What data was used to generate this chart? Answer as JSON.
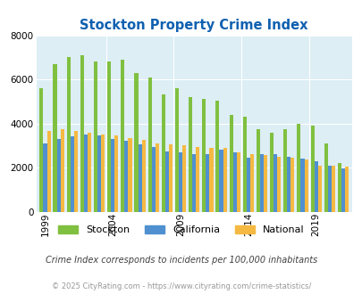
{
  "title": "Stockton Property Crime Index",
  "years": [
    1999,
    2000,
    2001,
    2002,
    2003,
    2004,
    2005,
    2006,
    2007,
    2008,
    2009,
    2010,
    2011,
    2012,
    2013,
    2014,
    2015,
    2016,
    2017,
    2018,
    2019,
    2020,
    2021
  ],
  "stockton": [
    5600,
    6700,
    7000,
    7100,
    6800,
    6800,
    6900,
    6300,
    6100,
    5300,
    5600,
    5200,
    5100,
    5050,
    4400,
    4300,
    3750,
    3600,
    3750,
    4000,
    3900,
    3100,
    2200
  ],
  "california": [
    3100,
    3300,
    3400,
    3500,
    3450,
    3300,
    3200,
    3050,
    2950,
    2750,
    2700,
    2600,
    2600,
    2800,
    2700,
    2450,
    2600,
    2600,
    2500,
    2400,
    2300,
    2100,
    1950
  ],
  "national": [
    3650,
    3750,
    3650,
    3600,
    3500,
    3450,
    3350,
    3250,
    3100,
    3050,
    3000,
    2950,
    2900,
    2900,
    2700,
    2600,
    2550,
    2500,
    2450,
    2350,
    2100,
    2100,
    2050
  ],
  "stockton_color": "#80c040",
  "california_color": "#5090d0",
  "national_color": "#f5b942",
  "bg_color": "#ddeef5",
  "ylim": [
    0,
    8000
  ],
  "yticks": [
    0,
    2000,
    4000,
    6000,
    8000
  ],
  "xtick_years": [
    1999,
    2004,
    2009,
    2014,
    2019
  ],
  "subtitle": "Crime Index corresponds to incidents per 100,000 inhabitants",
  "footer": "© 2025 CityRating.com - https://www.cityrating.com/crime-statistics/",
  "title_color": "#1060b0",
  "subtitle_color": "#404040",
  "footer_color": "#999999"
}
